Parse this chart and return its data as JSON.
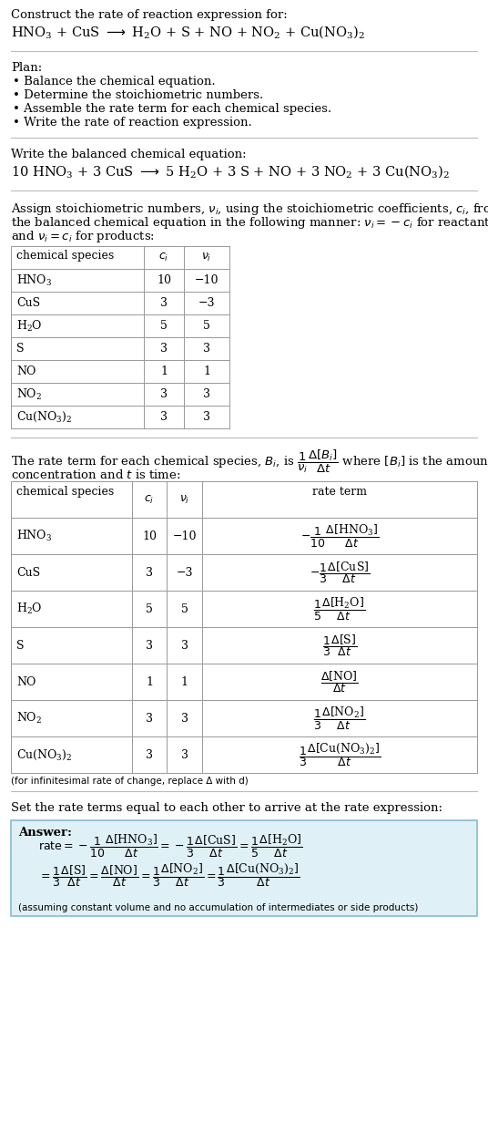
{
  "title_line1": "Construct the rate of reaction expression for:",
  "plan_header": "Plan:",
  "plan_items": [
    "• Balance the chemical equation.",
    "• Determine the stoichiometric numbers.",
    "• Assemble the rate term for each chemical species.",
    "• Write the rate of reaction expression."
  ],
  "balanced_header": "Write the balanced chemical equation:",
  "table1_rows": [
    [
      "HNO₃",
      "10",
      "−10"
    ],
    [
      "CuS",
      "3",
      "−3"
    ],
    [
      "H₂O",
      "5",
      "5"
    ],
    [
      "S",
      "3",
      "3"
    ],
    [
      "NO",
      "1",
      "1"
    ],
    [
      "NO₂",
      "3",
      "3"
    ],
    [
      "Cu(NO₃)₂",
      "3",
      "3"
    ]
  ],
  "table2_rows": [
    [
      "HNO₃",
      "10",
      "−10"
    ],
    [
      "CuS",
      "3",
      "−3"
    ],
    [
      "H₂O",
      "5",
      "5"
    ],
    [
      "S",
      "3",
      "3"
    ],
    [
      "NO",
      "1",
      "1"
    ],
    [
      "NO₂",
      "3",
      "3"
    ],
    [
      "Cu(NO₃)₂",
      "3",
      "3"
    ]
  ],
  "infinitesimal_note": "(for infinitesimal rate of change, replace Δ with d)",
  "rate_expr_header": "Set the rate terms equal to each other to arrive at the rate expression:",
  "answer_label": "Answer:",
  "answer_note": "(assuming constant volume and no accumulation of intermediates or side products)",
  "bg_color": "#ffffff",
  "table_border_color": "#999999",
  "answer_bg_color": "#dff0f7",
  "answer_border_color": "#88bbcc"
}
